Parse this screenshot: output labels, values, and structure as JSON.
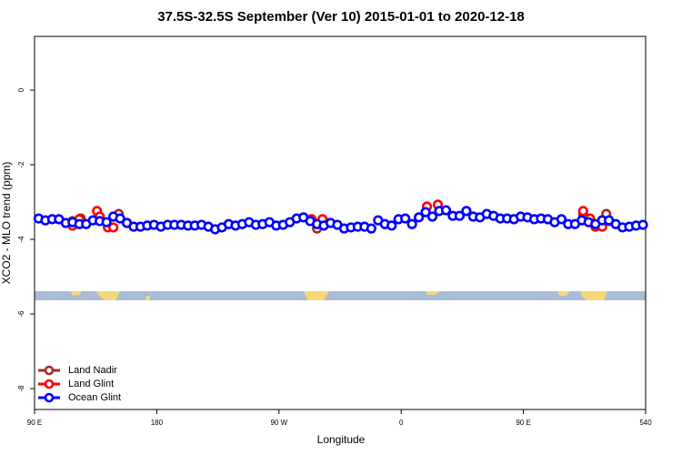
{
  "chart_data": {
    "type": "scatter",
    "title": "37.5S-32.5S September (Ver 10)   2015-01-01 to 2020-12-18",
    "x_label": "Longitude",
    "y_label": "XCO2 - MLO trend (ppm)",
    "xlim": [
      90,
      540
    ],
    "ylim": [
      -8.56,
      1.44
    ],
    "xticks": [
      {
        "value": 90,
        "label": "90 E"
      },
      180,
      {
        "value": 270,
        "label": "90 W"
      },
      {
        "value": 360,
        "label": "0"
      },
      {
        "value": 450,
        "label": "90 E"
      },
      540
    ],
    "yticks": [
      0,
      -2,
      -4,
      -6,
      -8
    ],
    "legend": "bottom-left",
    "series": [
      {
        "name": "Land Nadir",
        "color": "#a52a2a",
        "x": [
          118,
          124,
          152,
          298,
          303,
          494,
          511
        ],
        "values": [
          -3.51,
          -3.44,
          -3.32,
          -3.71,
          -3.51,
          -3.34,
          -3.32
        ]
      },
      {
        "name": "Land Glint",
        "color": "#ff0000",
        "x": [
          118,
          123,
          136,
          138,
          144,
          148,
          294,
          298,
          302,
          379,
          387,
          494,
          499,
          503,
          508,
          513
        ],
        "values": [
          -3.63,
          -3.46,
          -3.24,
          -3.39,
          -3.68,
          -3.68,
          -3.46,
          -3.59,
          -3.46,
          -3.12,
          -3.07,
          -3.24,
          -3.44,
          -3.66,
          -3.66,
          -3.51
        ]
      },
      {
        "name": "Ocean Glint",
        "color": "#0000ff",
        "x": [
          93,
          98,
          103,
          108,
          113,
          118,
          123,
          128,
          133,
          138,
          143,
          148,
          153,
          158,
          163,
          168,
          173,
          178,
          183,
          188,
          193,
          198,
          203,
          208,
          213,
          218,
          223,
          228,
          233,
          238,
          243,
          248,
          253,
          258,
          263,
          268,
          273,
          278,
          283,
          288,
          293,
          298,
          303,
          308,
          313,
          318,
          323,
          328,
          333,
          338,
          343,
          348,
          353,
          358,
          363,
          368,
          373,
          378,
          383,
          388,
          393,
          398,
          403,
          408,
          413,
          418,
          423,
          428,
          433,
          438,
          443,
          448,
          453,
          458,
          463,
          468,
          473,
          478,
          483,
          488,
          493,
          498,
          503,
          508,
          513,
          518,
          523,
          528,
          533,
          538
        ],
        "values": [
          -3.44,
          -3.49,
          -3.46,
          -3.46,
          -3.56,
          -3.54,
          -3.59,
          -3.59,
          -3.49,
          -3.51,
          -3.54,
          -3.39,
          -3.44,
          -3.56,
          -3.66,
          -3.66,
          -3.63,
          -3.61,
          -3.66,
          -3.61,
          -3.61,
          -3.61,
          -3.63,
          -3.63,
          -3.61,
          -3.66,
          -3.73,
          -3.68,
          -3.59,
          -3.63,
          -3.59,
          -3.54,
          -3.61,
          -3.59,
          -3.54,
          -3.63,
          -3.61,
          -3.54,
          -3.44,
          -3.41,
          -3.51,
          -3.59,
          -3.63,
          -3.56,
          -3.61,
          -3.71,
          -3.68,
          -3.66,
          -3.66,
          -3.71,
          -3.49,
          -3.59,
          -3.63,
          -3.46,
          -3.44,
          -3.59,
          -3.41,
          -3.27,
          -3.39,
          -3.24,
          -3.22,
          -3.37,
          -3.37,
          -3.24,
          -3.39,
          -3.41,
          -3.32,
          -3.37,
          -3.44,
          -3.44,
          -3.46,
          -3.39,
          -3.41,
          -3.46,
          -3.44,
          -3.46,
          -3.54,
          -3.46,
          -3.59,
          -3.59,
          -3.49,
          -3.54,
          -3.59,
          -3.49,
          -3.49,
          -3.59,
          -3.68,
          -3.66,
          -3.63,
          -3.61
        ]
      }
    ]
  }
}
